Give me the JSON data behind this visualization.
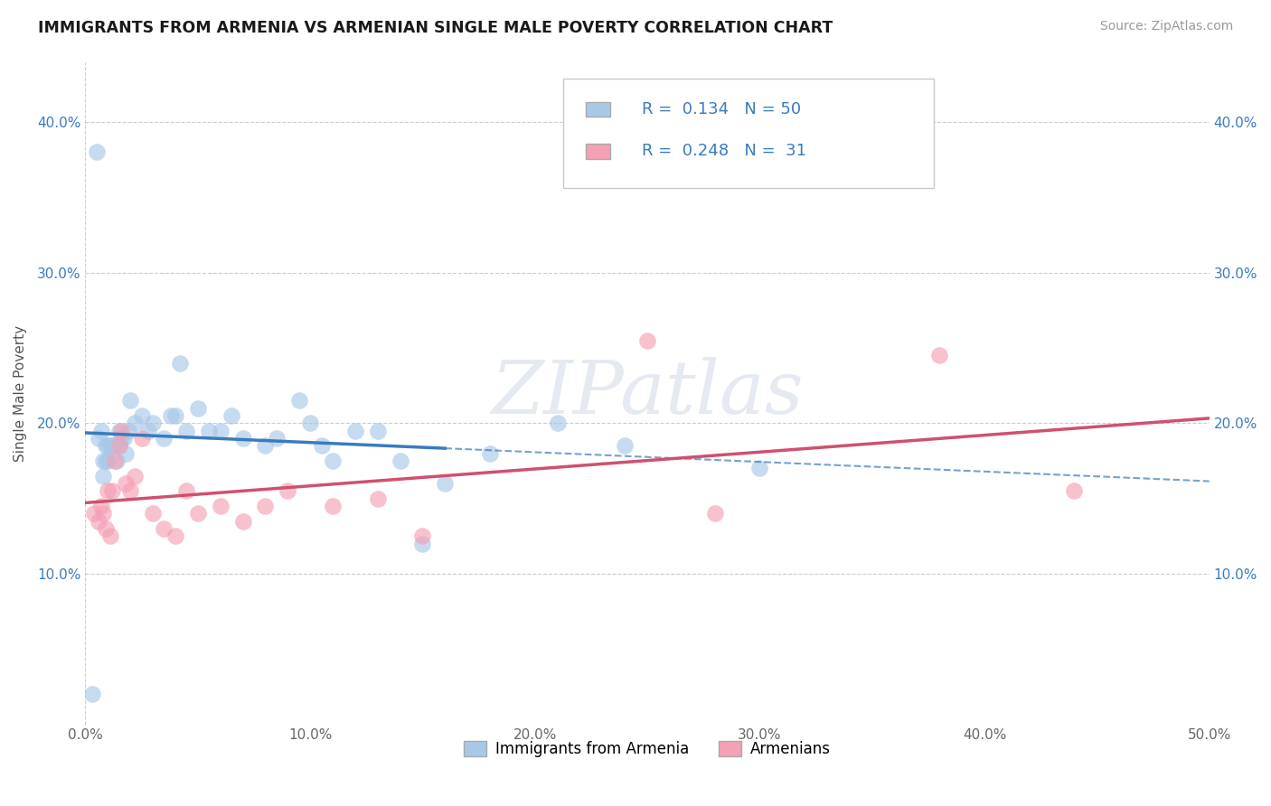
{
  "title": "IMMIGRANTS FROM ARMENIA VS ARMENIAN SINGLE MALE POVERTY CORRELATION CHART",
  "source": "Source: ZipAtlas.com",
  "ylabel": "Single Male Poverty",
  "xlim": [
    0.0,
    0.5
  ],
  "ylim": [
    0.0,
    0.44
  ],
  "xtick_labels": [
    "0.0%",
    "10.0%",
    "20.0%",
    "30.0%",
    "40.0%",
    "50.0%"
  ],
  "xtick_vals": [
    0.0,
    0.1,
    0.2,
    0.3,
    0.4,
    0.5
  ],
  "ytick_labels": [
    "10.0%",
    "20.0%",
    "30.0%",
    "40.0%"
  ],
  "ytick_vals": [
    0.1,
    0.2,
    0.3,
    0.4
  ],
  "watermark": "ZIPatlas",
  "legend_r1": "0.134",
  "legend_n1": "50",
  "legend_r2": "0.248",
  "legend_n2": "31",
  "color_blue": "#a8c8e8",
  "color_pink": "#f4a0b5",
  "color_blue_line": "#3a7bbf",
  "color_pink_line": "#d05070",
  "color_blue_text": "#3a7bbf",
  "series1_x": [
    0.003,
    0.005,
    0.006,
    0.007,
    0.008,
    0.008,
    0.009,
    0.009,
    0.01,
    0.01,
    0.011,
    0.012,
    0.013,
    0.014,
    0.015,
    0.015,
    0.016,
    0.017,
    0.018,
    0.019,
    0.02,
    0.022,
    0.025,
    0.028,
    0.03,
    0.035,
    0.038,
    0.04,
    0.042,
    0.045,
    0.05,
    0.055,
    0.06,
    0.065,
    0.07,
    0.08,
    0.085,
    0.095,
    0.1,
    0.105,
    0.11,
    0.12,
    0.13,
    0.14,
    0.15,
    0.16,
    0.18,
    0.21,
    0.24,
    0.3
  ],
  "series1_y": [
    0.02,
    0.38,
    0.19,
    0.195,
    0.175,
    0.165,
    0.185,
    0.175,
    0.175,
    0.185,
    0.185,
    0.185,
    0.185,
    0.175,
    0.185,
    0.195,
    0.19,
    0.19,
    0.18,
    0.195,
    0.215,
    0.2,
    0.205,
    0.195,
    0.2,
    0.19,
    0.205,
    0.205,
    0.24,
    0.195,
    0.21,
    0.195,
    0.195,
    0.205,
    0.19,
    0.185,
    0.19,
    0.215,
    0.2,
    0.185,
    0.175,
    0.195,
    0.195,
    0.175,
    0.12,
    0.16,
    0.18,
    0.2,
    0.185,
    0.17
  ],
  "series2_x": [
    0.004,
    0.006,
    0.007,
    0.008,
    0.009,
    0.01,
    0.011,
    0.012,
    0.013,
    0.015,
    0.016,
    0.018,
    0.02,
    0.022,
    0.025,
    0.03,
    0.035,
    0.04,
    0.045,
    0.05,
    0.06,
    0.07,
    0.08,
    0.09,
    0.11,
    0.13,
    0.15,
    0.25,
    0.28,
    0.38,
    0.44
  ],
  "series2_y": [
    0.14,
    0.135,
    0.145,
    0.14,
    0.13,
    0.155,
    0.125,
    0.155,
    0.175,
    0.185,
    0.195,
    0.16,
    0.155,
    0.165,
    0.19,
    0.14,
    0.13,
    0.125,
    0.155,
    0.14,
    0.145,
    0.135,
    0.145,
    0.155,
    0.145,
    0.15,
    0.125,
    0.255,
    0.14,
    0.245,
    0.155
  ],
  "background_color": "#ffffff",
  "grid_color": "#cccccc",
  "blue_line_solid_end": 0.16,
  "blue_line_dashed_start": 0.16
}
